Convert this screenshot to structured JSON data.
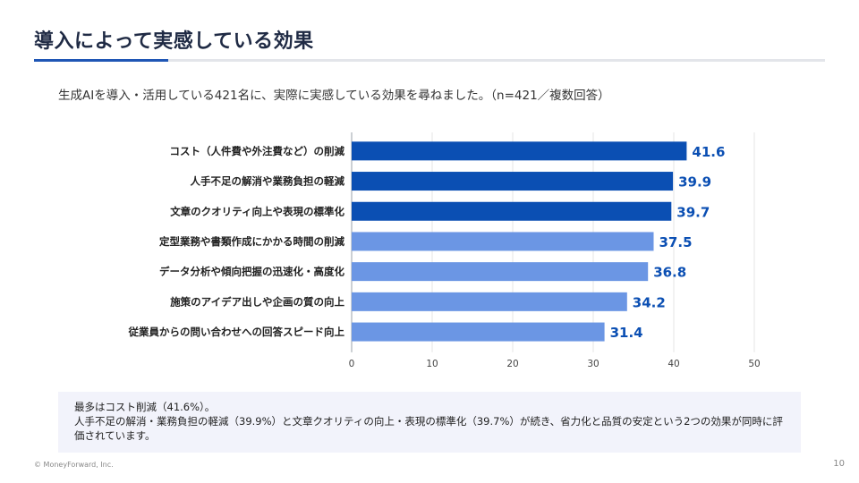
{
  "slide": {
    "title": "導入によって実感している効果",
    "subtitle": "生成AIを導入・活用している421名に、実際に実感している効果を尋ねました。（n=421／複数回答）",
    "note_line1": "最多はコスト削減（41.6%）。",
    "note_line2": "人手不足の解消・業務負担の軽減（39.9%）と文章クオリティの向上・表現の標準化（39.7%）が続き、省力化と品質の安定という2つの効果が同時に評価されています。",
    "footer": "© MoneyForward, Inc.",
    "page_number": "10"
  },
  "colors": {
    "accent_dark": "#0b4fb3",
    "accent_light": "#6b96e4",
    "value_label": "#0b4fb3"
  },
  "chart_data": {
    "type": "bar",
    "orientation": "horizontal",
    "categories": [
      "コスト（人件費や外注費など）の削減",
      "人手不足の解消や業務負担の軽減",
      "文章のクオリティ向上や表現の標準化",
      "定型業務や書類作成にかかる時間の削減",
      "データ分析や傾向把握の迅速化・高度化",
      "施策のアイデア出しや企画の質の向上",
      "従業員からの問い合わせへの回答スピード向上"
    ],
    "values": [
      41.6,
      39.9,
      39.7,
      37.5,
      36.8,
      34.2,
      31.4
    ],
    "highlight_top": 3,
    "xlim": [
      0,
      50
    ],
    "xticks": [
      0,
      10,
      20,
      30,
      40,
      50
    ],
    "grid": true,
    "title": "",
    "xlabel": "",
    "ylabel": ""
  }
}
